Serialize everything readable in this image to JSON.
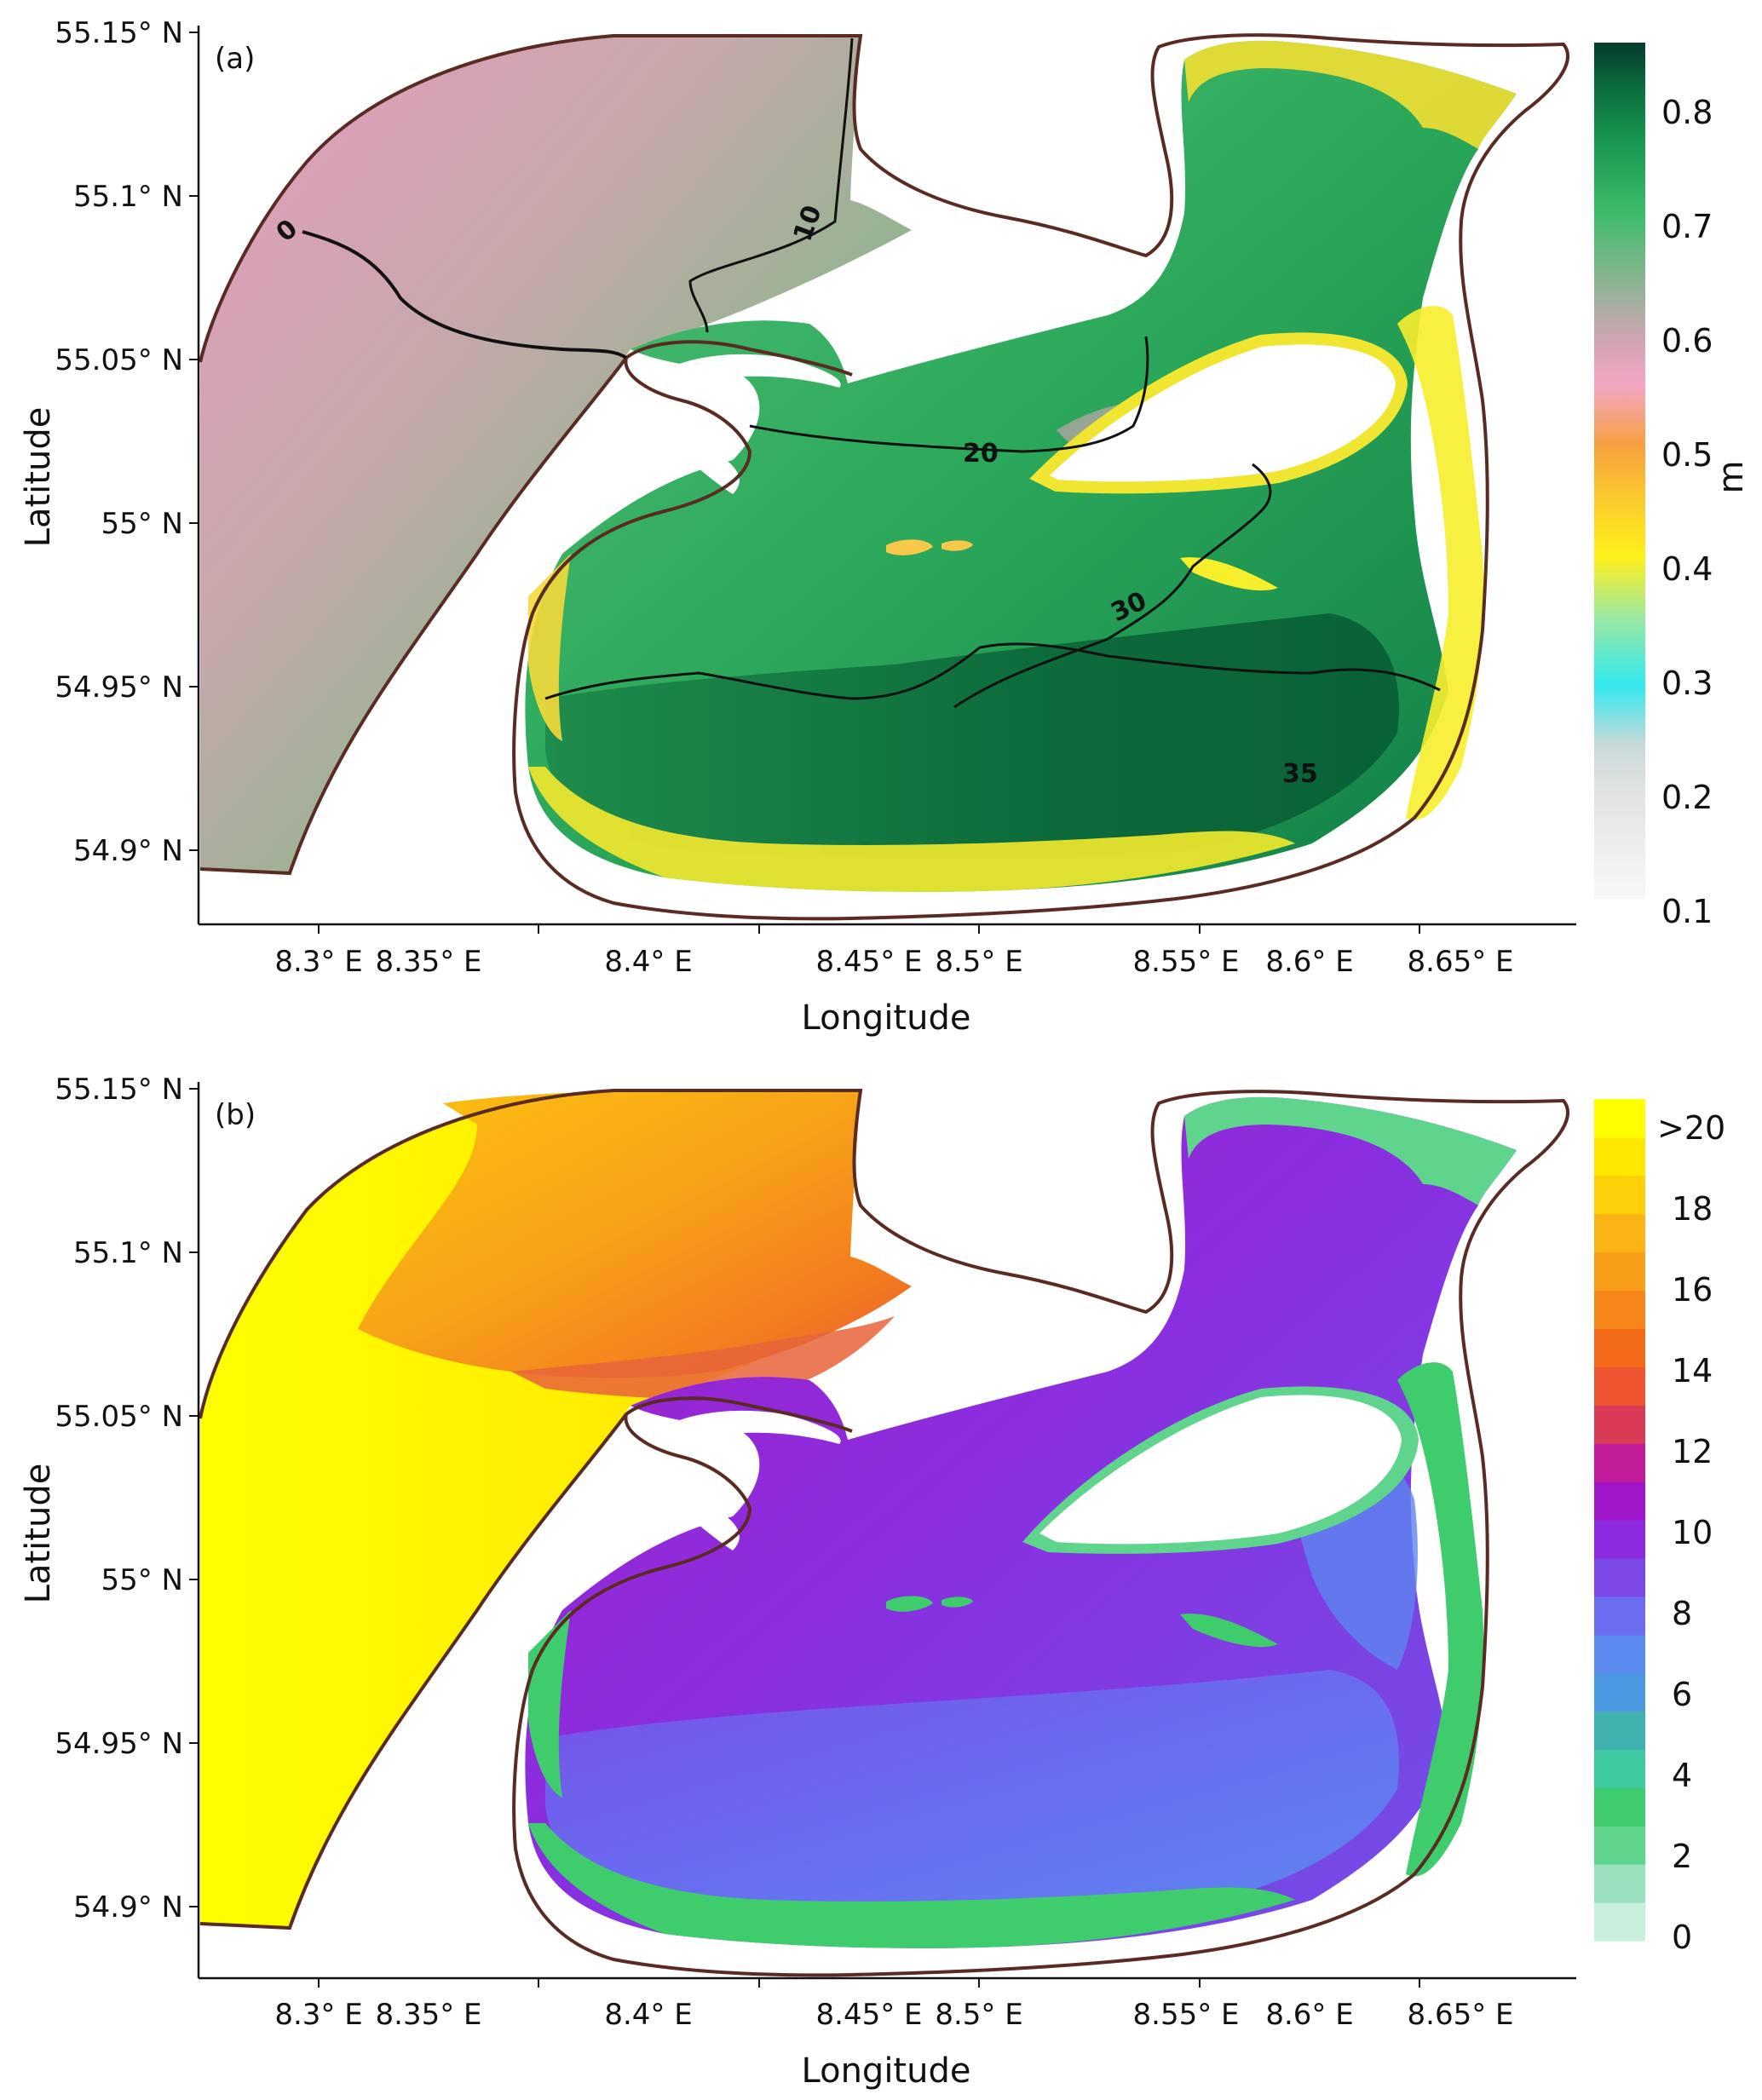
{
  "panels": [
    {
      "label": "(a)",
      "xlabel": "Longitude",
      "ylabel": "Latitude",
      "x_ticks": [
        "8.3° E",
        "8.35° E",
        "8.4° E",
        "8.45° E",
        "8.5° E",
        "8.55° E",
        "8.6° E",
        "8.65° E"
      ],
      "y_ticks": [
        "55.15° N",
        "55.1° N",
        "55.05° N",
        "55° N",
        "54.95° N",
        "54.9° N"
      ],
      "colorbar": {
        "unit": "m",
        "ticks": [
          "0.8",
          "0.7",
          "0.6",
          "0.5",
          "0.4",
          "0.3",
          "0.2",
          "0.1"
        ]
      },
      "contour_labels": [
        "0",
        "10",
        "20",
        "30",
        "35"
      ]
    },
    {
      "label": "(b)",
      "xlabel": "Longitude",
      "ylabel": "Latitude",
      "x_ticks": [
        "8.3° E",
        "8.35° E",
        "8.4° E",
        "8.45° E",
        "8.5° E",
        "8.55° E",
        "8.6° E",
        "8.65° E"
      ],
      "y_ticks": [
        "55.15° N",
        "55.1° N",
        "55.05° N",
        "55° N",
        "54.95° N",
        "54.9° N"
      ],
      "colorbar": {
        "unit": "",
        "ticks": [
          ">20",
          "18",
          "16",
          "14",
          "12",
          "10",
          "8",
          "6",
          "4",
          "2",
          "0"
        ]
      }
    }
  ],
  "colors": {
    "coastline": "#5a2b22",
    "panel_a_scale": [
      "#f8f8f8",
      "#e6e6e6",
      "#cfcfcf",
      "#5ae8e8",
      "#1ee8f0",
      "#4bd6e0",
      "#ffff33",
      "#fff01a",
      "#ffd233",
      "#f9b038",
      "#f79b4b",
      "#f2a0b7",
      "#ea8cb6",
      "#cdb0b0",
      "#a8a8a8",
      "#7fb48c",
      "#57b077",
      "#36b865",
      "#27a65a",
      "#0f8b4a",
      "#0a6b3c",
      "#073e31"
    ],
    "panel_b_scale": [
      "#c8f0dc",
      "#9ae2bf",
      "#5fd48c",
      "#3fcc6d",
      "#3fc9a0",
      "#3fb2b0",
      "#4c98e0",
      "#5a8bf0",
      "#6c6cf0",
      "#7a48e6",
      "#8b2ae0",
      "#a016c8",
      "#c21c9a",
      "#d93a55",
      "#ee5530",
      "#f56a18",
      "#f7861a",
      "#f89e18",
      "#fbb415",
      "#fdd008",
      "#ffe800",
      "#ffff00"
    ]
  }
}
